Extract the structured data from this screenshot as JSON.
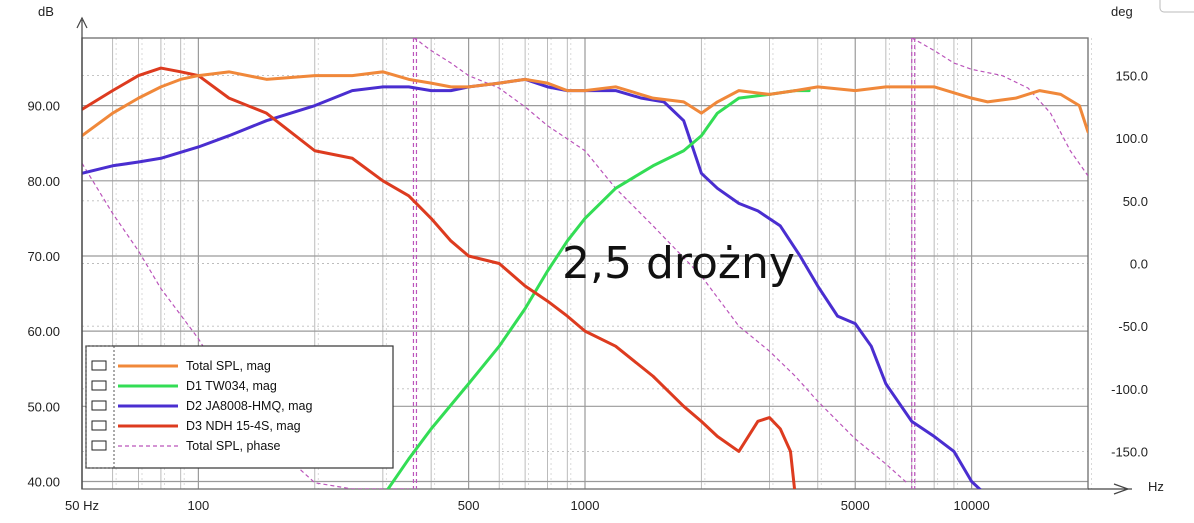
{
  "chart_data": {
    "type": "line",
    "title": "",
    "annotation": "2,5 drożny",
    "x_axis": {
      "label": "Hz",
      "scale": "log",
      "range": [
        50,
        20000
      ],
      "tick_values": [
        50,
        100,
        500,
        1000,
        5000,
        10000
      ],
      "tick_labels": [
        "50 Hz",
        "100",
        "500",
        "1000",
        "5000",
        "10000"
      ]
    },
    "y_left": {
      "label": "dB",
      "range": [
        39,
        99
      ],
      "tick_values": [
        40,
        50,
        60,
        70,
        80,
        90
      ],
      "tick_labels": [
        "40.00",
        "50.00",
        "60.00",
        "70.00",
        "80.00",
        "90.00"
      ]
    },
    "y_right": {
      "label": "deg",
      "range": [
        -180,
        180
      ],
      "tick_values": [
        -150,
        -100,
        -50,
        0,
        50,
        100,
        150
      ],
      "tick_labels": [
        "-150.0",
        "-100.0",
        "-50.0",
        "0.0",
        "50.0",
        "100.0",
        "150.0"
      ]
    },
    "grid": true,
    "legend_position": "bottom-left",
    "series": [
      {
        "name": "Total SPL, mag",
        "axis": "left",
        "color": "#f0883a",
        "style": "solid",
        "x": [
          50,
          60,
          70,
          80,
          90,
          100,
          120,
          150,
          200,
          250,
          300,
          350,
          400,
          450,
          500,
          600,
          700,
          800,
          900,
          1000,
          1200,
          1500,
          1800,
          2000,
          2200,
          2500,
          3000,
          3500,
          4000,
          5000,
          6000,
          8000,
          10000,
          11000,
          13000,
          15000,
          17000,
          19000,
          20000
        ],
        "y": [
          86,
          89,
          91,
          92.5,
          93.5,
          94,
          94.5,
          93.5,
          94,
          94,
          94.5,
          93.5,
          93,
          92.5,
          92.5,
          93,
          93.5,
          93,
          92,
          92,
          92.5,
          91,
          90.5,
          89,
          90.5,
          92,
          91.5,
          92,
          92.5,
          92,
          92.5,
          92.5,
          91,
          90.5,
          91,
          92,
          91.5,
          90,
          86.5
        ]
      },
      {
        "name": "D1 TW034, mag",
        "axis": "left",
        "color": "#33dd55",
        "style": "solid",
        "x": [
          300,
          350,
          400,
          500,
          600,
          700,
          800,
          900,
          1000,
          1200,
          1500,
          1800,
          2000,
          2200,
          2500,
          3000,
          3500,
          3800
        ],
        "y": [
          38,
          43,
          47,
          53,
          58,
          63,
          68,
          72,
          75,
          79,
          82,
          84,
          86,
          89,
          91,
          91.5,
          92,
          92
        ]
      },
      {
        "name": "D2 JA8008-HMQ, mag",
        "axis": "left",
        "color": "#4a2ed0",
        "style": "solid",
        "x": [
          50,
          60,
          70,
          80,
          100,
          120,
          150,
          200,
          250,
          300,
          350,
          400,
          450,
          500,
          600,
          700,
          800,
          900,
          1000,
          1200,
          1400,
          1600,
          1800,
          2000,
          2200,
          2500,
          2800,
          3200,
          3600,
          4000,
          4500,
          5000,
          5500,
          6000,
          7000,
          8000,
          9000,
          10000,
          11000,
          12000,
          13000,
          14000,
          15000
        ],
        "y": [
          81,
          82,
          82.5,
          83,
          84.5,
          86,
          88,
          90,
          92,
          92.5,
          92.5,
          92,
          92,
          92.5,
          93,
          93.5,
          92.5,
          92,
          92,
          92,
          91,
          90.5,
          88,
          81,
          79,
          77,
          76,
          74,
          70,
          66,
          62,
          61,
          58,
          53,
          48,
          46,
          44,
          40,
          38,
          38,
          38.5,
          38.5,
          38
        ]
      },
      {
        "name": "D3 NDH 15-4S, mag",
        "axis": "left",
        "color": "#dd3b1f",
        "style": "solid",
        "x": [
          50,
          60,
          70,
          80,
          90,
          100,
          120,
          150,
          200,
          250,
          300,
          350,
          400,
          450,
          500,
          600,
          700,
          800,
          900,
          1000,
          1200,
          1500,
          1800,
          2000,
          2200,
          2500,
          2800,
          3000,
          3200,
          3400,
          3500
        ],
        "y": [
          89.5,
          92,
          94,
          95,
          94.5,
          94,
          91,
          89,
          84,
          83,
          80,
          78,
          75,
          72,
          70,
          69,
          66,
          64,
          62,
          60,
          58,
          54,
          50,
          48,
          46,
          44,
          48,
          48.5,
          47,
          44,
          38
        ]
      },
      {
        "name": "Total SPL, phase",
        "axis": "right",
        "color": "#bb55bb",
        "style": "dashed",
        "x": [
          50,
          60,
          70,
          80,
          100,
          120,
          150,
          200,
          250,
          300,
          350,
          360,
          370,
          380,
          400,
          450,
          500,
          600,
          700,
          800,
          1000,
          1200,
          1500,
          2000,
          2500,
          3000,
          3500,
          4000,
          5000,
          6000,
          6800,
          7000,
          7200,
          8000,
          9000,
          10000,
          12000,
          14000,
          16000,
          18000,
          20000
        ],
        "y": [
          80,
          40,
          10,
          -20,
          -60,
          -100,
          -140,
          -175,
          -180,
          -180,
          -180,
          180,
          178,
          175,
          170,
          160,
          150,
          140,
          125,
          110,
          90,
          60,
          30,
          -10,
          -50,
          -70,
          -90,
          -110,
          -140,
          -160,
          -175,
          180,
          178,
          170,
          160,
          155,
          150,
          140,
          120,
          90,
          70
        ]
      }
    ]
  }
}
